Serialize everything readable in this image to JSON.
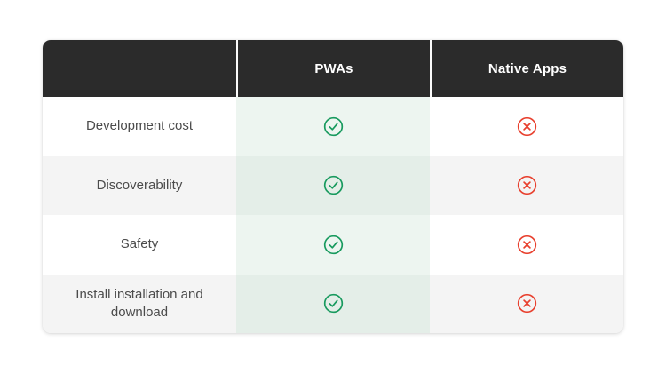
{
  "table": {
    "header": {
      "label_column": "",
      "columns": [
        {
          "label": "PWAs"
        },
        {
          "label": "Native Apps"
        }
      ]
    },
    "rows": [
      {
        "label": "Development cost",
        "pwa": "check",
        "native": "cross"
      },
      {
        "label": "Discoverability",
        "pwa": "check",
        "native": "cross"
      },
      {
        "label": "Safety",
        "pwa": "check",
        "native": "cross"
      },
      {
        "label": "Install installation and download",
        "pwa": "check",
        "native": "cross"
      }
    ],
    "icons": {
      "check": "check-circle-icon",
      "cross": "x-circle-icon"
    }
  },
  "colors": {
    "header_bg": "#2b2b2b",
    "header_text": "#ffffff",
    "row_white": "#ffffff",
    "row_gray": "#f4f4f4",
    "pwa_mint_light": "#edf5f0",
    "pwa_mint_dark": "#e4eee8",
    "label_text": "#4b4b4b",
    "check_green": "#189a5e",
    "cross_red": "#e8402e"
  },
  "chart_data": {
    "type": "table",
    "columns": [
      "",
      "PWAs",
      "Native Apps"
    ],
    "rows": [
      [
        "Development cost",
        "yes",
        "no"
      ],
      [
        "Discoverability",
        "yes",
        "no"
      ],
      [
        "Safety",
        "yes",
        "no"
      ],
      [
        "Install installation and download",
        "yes",
        "no"
      ]
    ]
  }
}
